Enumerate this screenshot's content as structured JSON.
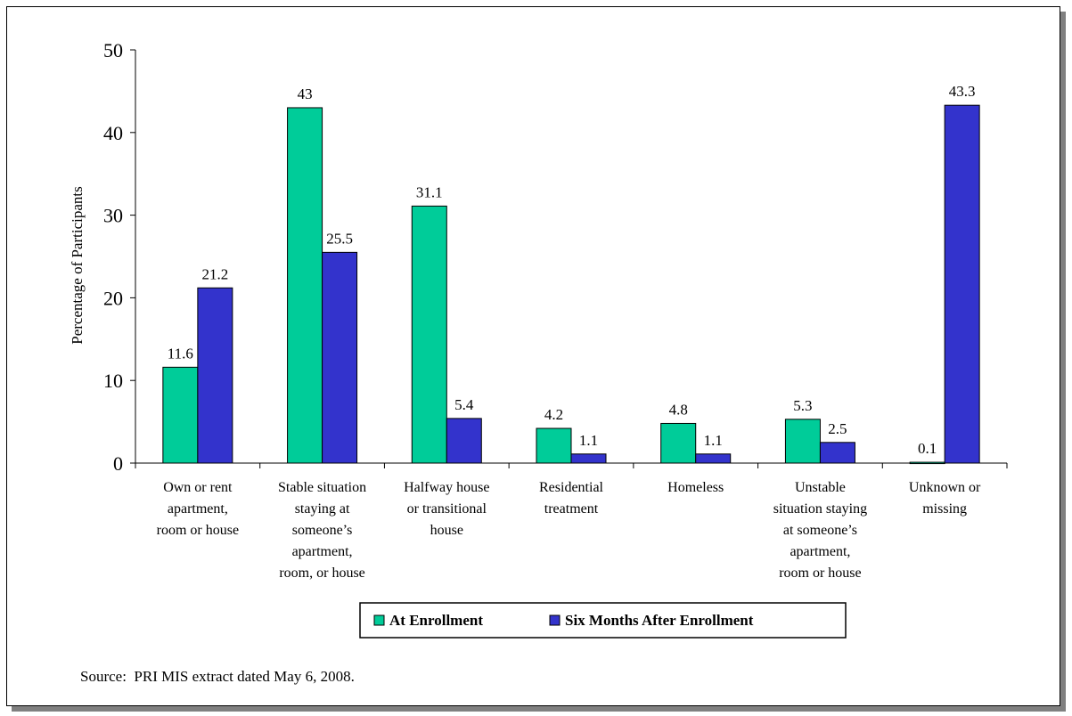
{
  "chart_data": {
    "type": "bar",
    "title": "",
    "xlabel": "",
    "ylabel": "Percentage of Participants",
    "ylim": [
      0,
      50
    ],
    "yticks": [
      0,
      10,
      20,
      30,
      40,
      50
    ],
    "grid": false,
    "legend_position": "bottom",
    "categories": [
      [
        "Own or rent",
        "apartment,",
        "room or house"
      ],
      [
        "Stable situation",
        "staying at",
        "someone’s",
        "apartment,",
        "room, or house"
      ],
      [
        "Halfway house",
        "or transitional",
        "house"
      ],
      [
        "Residential",
        "treatment"
      ],
      [
        "Homeless"
      ],
      [
        "Unstable",
        "situation staying",
        "at someone’s",
        "apartment,",
        "room or house"
      ],
      [
        "Unknown or",
        "missing"
      ]
    ],
    "series": [
      {
        "name": "At Enrollment",
        "color": "#00cc99",
        "values": [
          11.6,
          43,
          31.1,
          4.2,
          4.8,
          5.3,
          0.1
        ],
        "labels": [
          "11.6",
          "43",
          "31.1",
          "4.2",
          "4.8",
          "5.3",
          "0.1"
        ]
      },
      {
        "name": "Six Months After Enrollment",
        "color": "#3333cc",
        "values": [
          21.2,
          25.5,
          5.4,
          1.1,
          1.1,
          2.5,
          43.3
        ],
        "labels": [
          "21.2",
          "25.5",
          "5.4",
          "1.1",
          "1.1",
          "2.5",
          "43.3"
        ]
      }
    ]
  },
  "source_note": "Source:  PRI MIS extract dated May 6, 2008."
}
